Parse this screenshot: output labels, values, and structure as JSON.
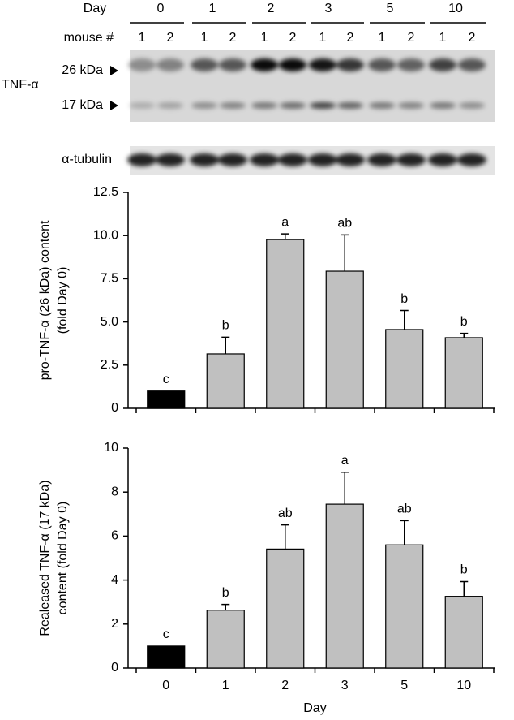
{
  "blot": {
    "day_label": "Day",
    "days": [
      "0",
      "1",
      "2",
      "3",
      "5",
      "10"
    ],
    "mouse_label": "mouse #",
    "mice": [
      "1",
      "2",
      "1",
      "2",
      "1",
      "2",
      "1",
      "2",
      "1",
      "2",
      "1",
      "2"
    ],
    "target": "TNF-α",
    "band_high": "26 kDa",
    "band_low": "17 kDa",
    "loading": "α-tubulin"
  },
  "chart_data": [
    {
      "type": "bar",
      "ylabel": [
        "pro-TNF-α (26 kDa) content",
        "(fold Day 0)"
      ],
      "categories": [
        null,
        null,
        null,
        null,
        null,
        null
      ],
      "values": [
        1.0,
        3.15,
        9.77,
        7.94,
        4.56,
        4.09
      ],
      "errors": [
        null,
        0.97,
        0.33,
        2.1,
        1.1,
        0.25
      ],
      "letters": [
        "c",
        "b",
        "a",
        "ab",
        "b",
        "b"
      ],
      "colors": [
        "#000000",
        "#c0c0c0",
        "#c0c0c0",
        "#c0c0c0",
        "#c0c0c0",
        "#c0c0c0"
      ],
      "ylim": [
        0,
        12.5
      ],
      "yticks": [
        0,
        2.5,
        {
          "value": 5,
          "label": "5.0"
        },
        7.5,
        {
          "value": 10,
          "label": "10.0"
        },
        12.5
      ]
    },
    {
      "type": "bar",
      "ylabel": [
        "Realeased TNF-α (17 kDa)",
        "content (fold Day 0)"
      ],
      "xlabel": "Day",
      "categories": [
        "0",
        "1",
        "2",
        "3",
        "5",
        "10"
      ],
      "values": [
        1.0,
        2.63,
        5.41,
        7.45,
        5.6,
        3.26
      ],
      "errors": [
        null,
        0.26,
        1.1,
        1.45,
        1.1,
        0.67
      ],
      "letters": [
        "c",
        "b",
        "ab",
        "a",
        "ab",
        "b"
      ],
      "colors": [
        "#000000",
        "#c0c0c0",
        "#c0c0c0",
        "#c0c0c0",
        "#c0c0c0",
        "#c0c0c0"
      ],
      "ylim": [
        0,
        10
      ],
      "yticks": [
        0,
        2,
        4,
        6,
        8,
        10
      ]
    }
  ]
}
